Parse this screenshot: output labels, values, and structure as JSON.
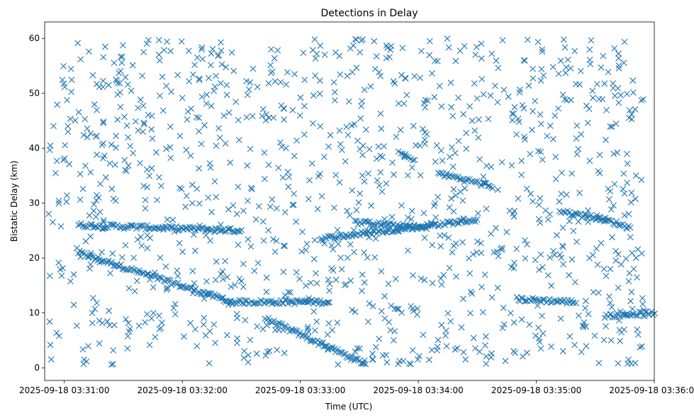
{
  "chart_data": {
    "type": "scatter",
    "title": "Detections in Delay",
    "xlabel": "Time (UTC)",
    "ylabel": "Bistatic Delay (km)",
    "x_start": "2025-09-18 03:30:50",
    "x_end": "2025-09-18 03:36:00",
    "x_ticks": [
      "2025-09-18 03:31:00",
      "2025-09-18 03:32:00",
      "2025-09-18 03:33:00",
      "2025-09-18 03:34:00",
      "2025-09-18 03:35:00",
      "2025-09-18 03:36:00"
    ],
    "ylim": [
      -2.3,
      63
    ],
    "y_ticks": [
      0,
      10,
      20,
      30,
      40,
      50,
      60
    ],
    "grid": false,
    "marker": "x",
    "color": "#1f77b4",
    "tracks": [
      {
        "t_start": "2025-09-18 03:31:07",
        "t_end": "2025-09-18 03:32:25",
        "y_start": 21,
        "y_end": 12
      },
      {
        "t_start": "2025-09-18 03:32:42",
        "t_end": "2025-09-18 03:33:33",
        "y_start": 9,
        "y_end": 0.7
      },
      {
        "t_start": "2025-09-18 03:32:25",
        "t_end": "2025-09-18 03:33:15",
        "y_start": 12,
        "y_end": 12
      },
      {
        "t_start": "2025-09-18 03:31:07",
        "t_end": "2025-09-18 03:32:30",
        "y_start": 26,
        "y_end": 25
      },
      {
        "t_start": "2025-09-18 03:33:10",
        "t_end": "2025-09-18 03:34:30",
        "y_start": 23.5,
        "y_end": 27
      },
      {
        "t_start": "2025-09-18 03:33:28",
        "t_end": "2025-09-18 03:34:05",
        "y_start": 26.5,
        "y_end": 25.5
      },
      {
        "t_start": "2025-09-18 03:34:10",
        "t_end": "2025-09-18 03:34:38",
        "y_start": 35.5,
        "y_end": 33
      },
      {
        "t_start": "2025-09-18 03:34:50",
        "t_end": "2025-09-18 03:35:20",
        "y_start": 12.5,
        "y_end": 12
      },
      {
        "t_start": "2025-09-18 03:35:12",
        "t_end": "2025-09-18 03:35:35",
        "y_start": 28.5,
        "y_end": 27
      },
      {
        "t_start": "2025-09-18 03:35:30",
        "t_end": "2025-09-18 03:35:48",
        "y_start": 27.5,
        "y_end": 25.5
      },
      {
        "t_start": "2025-09-18 03:35:35",
        "t_end": "2025-09-18 03:36:00",
        "y_start": 9.5,
        "y_end": 10
      },
      {
        "t_start": "2025-09-18 03:33:50",
        "t_end": "2025-09-18 03:33:58",
        "y_start": 39,
        "y_end": 38
      }
    ],
    "random_clutter_points": 1150,
    "clutter_ylim": [
      0.5,
      60
    ]
  }
}
